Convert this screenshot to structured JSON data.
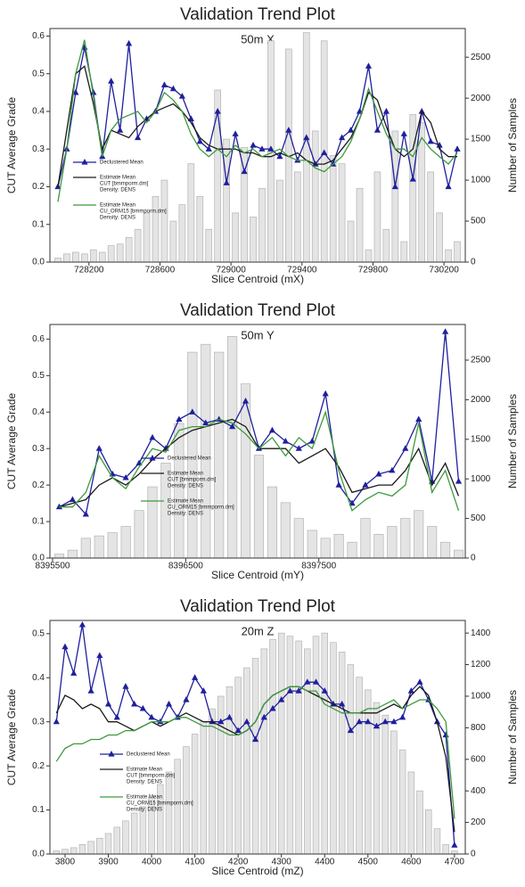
{
  "chart_data": [
    {
      "type": "combo",
      "title": "Validation Trend Plot",
      "subtitle": "50m X",
      "xlabel": "Slice Centroid (mX)",
      "ylabel": "CUT Average Grade",
      "y2label": "Number of Samples",
      "x": [
        728025,
        728075,
        728125,
        728175,
        728225,
        728275,
        728325,
        728375,
        728425,
        728475,
        728525,
        728575,
        728625,
        728675,
        728725,
        728775,
        728825,
        728875,
        728925,
        728975,
        729025,
        729075,
        729125,
        729175,
        729225,
        729275,
        729325,
        729375,
        729425,
        729475,
        729525,
        729575,
        729625,
        729675,
        729725,
        729775,
        729825,
        729875,
        729925,
        729975,
        730025,
        730075,
        730125,
        730175,
        730225,
        730275
      ],
      "xlim": [
        727980,
        730320
      ],
      "xticks": [
        728200,
        728600,
        729000,
        729400,
        729800,
        730200
      ],
      "ylim": [
        0,
        0.62
      ],
      "yticks": [
        {
          "value": 0,
          "label": "0.0"
        },
        0.1,
        0.2,
        0.3,
        0.4,
        0.5,
        0.6
      ],
      "y2lim": [
        0,
        2850
      ],
      "y2ticks": [
        0,
        500,
        1000,
        1500,
        2000,
        2500
      ],
      "series": [
        {
          "name": "Declustered Mean",
          "color": "#1f1f9e",
          "marker": "triangle",
          "values": [
            0.2,
            0.3,
            0.45,
            0.57,
            0.45,
            0.28,
            0.48,
            0.35,
            0.58,
            0.33,
            0.38,
            0.4,
            0.47,
            0.46,
            0.44,
            0.38,
            0.32,
            0.3,
            0.4,
            0.21,
            0.34,
            0.24,
            0.31,
            0.3,
            0.3,
            0.28,
            0.35,
            0.27,
            0.33,
            0.26,
            0.29,
            0.26,
            0.33,
            0.35,
            0.4,
            0.52,
            0.35,
            0.4,
            0.2,
            0.34,
            0.22,
            0.4,
            0.32,
            0.31,
            0.2,
            0.3
          ]
        },
        {
          "name": "Estimate Mean",
          "legend_lines": [
            "CUT [bmmporm.dm]",
            "Density: DENS"
          ],
          "color": "#1a1a1a",
          "values": [
            0.2,
            0.35,
            0.5,
            0.52,
            0.42,
            0.3,
            0.35,
            0.34,
            0.33,
            0.36,
            0.38,
            0.4,
            0.41,
            0.42,
            0.4,
            0.37,
            0.33,
            0.31,
            0.3,
            0.3,
            0.3,
            0.29,
            0.29,
            0.28,
            0.28,
            0.29,
            0.28,
            0.29,
            0.27,
            0.26,
            0.26,
            0.27,
            0.3,
            0.33,
            0.38,
            0.45,
            0.43,
            0.36,
            0.3,
            0.28,
            0.3,
            0.4,
            0.37,
            0.3,
            0.28,
            0.28
          ]
        },
        {
          "name": "Estimate Mean",
          "legend_lines": [
            "CU_ORM15 [bmmporm.dm]",
            "Density: DENS"
          ],
          "color": "#3c9a3c",
          "values": [
            0.16,
            0.3,
            0.5,
            0.59,
            0.44,
            0.28,
            0.35,
            0.38,
            0.39,
            0.4,
            0.37,
            0.4,
            0.45,
            0.43,
            0.4,
            0.34,
            0.3,
            0.28,
            0.3,
            0.28,
            0.31,
            0.29,
            0.3,
            0.28,
            0.29,
            0.3,
            0.28,
            0.27,
            0.27,
            0.25,
            0.24,
            0.26,
            0.28,
            0.32,
            0.38,
            0.46,
            0.4,
            0.34,
            0.3,
            0.3,
            0.28,
            0.33,
            0.3,
            0.28,
            0.26,
            0.29
          ]
        },
        {
          "style": "bar",
          "axis": "y2",
          "color": "#e4e4e4",
          "values": [
            50,
            100,
            120,
            100,
            150,
            120,
            200,
            220,
            300,
            400,
            600,
            800,
            1000,
            500,
            700,
            1200,
            800,
            400,
            2100,
            1500,
            600,
            1400,
            550,
            900,
            2700,
            1000,
            2600,
            1100,
            2800,
            1600,
            2700,
            1300,
            1200,
            500,
            900,
            150,
            1100,
            400,
            1600,
            250,
            1800,
            1700,
            1100,
            600,
            150,
            250
          ]
        }
      ]
    },
    {
      "type": "combo",
      "title": "Validation Trend Plot",
      "subtitle": "50m Y",
      "xlabel": "Slice Centroid (mY)",
      "ylabel": "CUT Average Grade",
      "y2label": "Number of Samples",
      "x": [
        8395550,
        8395650,
        8395750,
        8395850,
        8395950,
        8396050,
        8396150,
        8396250,
        8396350,
        8396450,
        8396550,
        8396650,
        8396750,
        8396850,
        8396950,
        8397050,
        8397150,
        8397250,
        8397350,
        8397450,
        8397550,
        8397650,
        8397750,
        8397850,
        8397950,
        8398050,
        8398150,
        8398250,
        8398350,
        8398450,
        8398550
      ],
      "xlim": [
        8395480,
        8398600
      ],
      "xticks": [
        8395500,
        8396500,
        8397500
      ],
      "ylim": [
        0,
        0.64
      ],
      "yticks": [
        {
          "value": 0,
          "label": "0.0"
        },
        0.1,
        0.2,
        0.3,
        0.4,
        0.5,
        0.6
      ],
      "y2lim": [
        0,
        2950
      ],
      "y2ticks": [
        0,
        500,
        1000,
        1500,
        2000,
        2500
      ],
      "series": [
        {
          "name": "Declustered Mean",
          "color": "#1f1f9e",
          "marker": "triangle",
          "values": [
            0.14,
            0.16,
            0.12,
            0.3,
            0.23,
            0.22,
            0.26,
            0.33,
            0.3,
            0.38,
            0.4,
            0.37,
            0.38,
            0.36,
            0.43,
            0.3,
            0.35,
            0.32,
            0.3,
            0.32,
            0.45,
            0.2,
            0.15,
            0.2,
            0.23,
            0.24,
            0.3,
            0.38,
            0.21,
            0.62,
            0.21
          ]
        },
        {
          "name": "Estimate Mean",
          "legend_lines": [
            "CUT [bmmporm.dm]",
            "Density: DENS"
          ],
          "color": "#1a1a1a",
          "values": [
            0.14,
            0.15,
            0.16,
            0.2,
            0.22,
            0.2,
            0.23,
            0.27,
            0.3,
            0.33,
            0.35,
            0.36,
            0.37,
            0.38,
            0.36,
            0.3,
            0.3,
            0.3,
            0.26,
            0.28,
            0.3,
            0.25,
            0.18,
            0.19,
            0.2,
            0.2,
            0.24,
            0.3,
            0.2,
            0.26,
            0.17
          ]
        },
        {
          "name": "Estimate Mean",
          "legend_lines": [
            "CU_ORM15 [bmmporm.dm]",
            "Density: DENS"
          ],
          "color": "#3c9a3c",
          "values": [
            0.14,
            0.14,
            0.18,
            0.28,
            0.22,
            0.19,
            0.25,
            0.3,
            0.29,
            0.35,
            0.36,
            0.36,
            0.38,
            0.37,
            0.34,
            0.3,
            0.33,
            0.28,
            0.33,
            0.3,
            0.4,
            0.24,
            0.13,
            0.16,
            0.18,
            0.17,
            0.2,
            0.37,
            0.18,
            0.24,
            0.13
          ]
        },
        {
          "style": "bar",
          "axis": "y2",
          "color": "#e4e4e4",
          "values": [
            50,
            100,
            250,
            280,
            320,
            400,
            600,
            900,
            1200,
            1700,
            2600,
            2700,
            2600,
            2800,
            2200,
            1300,
            900,
            700,
            500,
            350,
            250,
            300,
            200,
            500,
            300,
            400,
            500,
            600,
            400,
            200,
            100
          ]
        }
      ]
    },
    {
      "type": "combo",
      "title": "Validation Trend Plot",
      "subtitle": "20m Z",
      "xlabel": "Slice Centroid (mZ)",
      "ylabel": "CUT Average Grade",
      "y2label": "Number of Samples",
      "x": [
        3780,
        3800,
        3820,
        3840,
        3860,
        3880,
        3900,
        3920,
        3940,
        3960,
        3980,
        4000,
        4020,
        4040,
        4060,
        4080,
        4100,
        4120,
        4140,
        4160,
        4180,
        4200,
        4220,
        4240,
        4260,
        4280,
        4300,
        4320,
        4340,
        4360,
        4380,
        4400,
        4420,
        4440,
        4460,
        4480,
        4500,
        4520,
        4540,
        4560,
        4580,
        4600,
        4620,
        4640,
        4660,
        4680,
        4700
      ],
      "xlim": [
        3765,
        4725
      ],
      "xticks": [
        3800,
        3900,
        4000,
        4100,
        4200,
        4300,
        4400,
        4500,
        4600,
        4700
      ],
      "ylim": [
        0,
        0.53
      ],
      "yticks": [
        {
          "value": 0,
          "label": "0.0"
        },
        0.1,
        0.2,
        0.3,
        0.4,
        0.5
      ],
      "y2lim": [
        0,
        1480
      ],
      "y2ticks": [
        0,
        200,
        400,
        600,
        800,
        1000,
        1200,
        1400
      ],
      "series": [
        {
          "name": "Declustered Mean",
          "color": "#1f1f9e",
          "marker": "triangle",
          "values": [
            0.3,
            0.47,
            0.41,
            0.52,
            0.37,
            0.45,
            0.34,
            0.31,
            0.38,
            0.34,
            0.33,
            0.31,
            0.3,
            0.34,
            0.31,
            0.35,
            0.4,
            0.37,
            0.3,
            0.3,
            0.31,
            0.28,
            0.3,
            0.26,
            0.31,
            0.33,
            0.35,
            0.37,
            0.37,
            0.39,
            0.39,
            0.37,
            0.34,
            0.34,
            0.28,
            0.3,
            0.3,
            0.29,
            0.3,
            0.3,
            0.31,
            0.37,
            0.39,
            0.35,
            0.3,
            0.27,
            0.02
          ]
        },
        {
          "name": "Estimate Mean",
          "legend_lines": [
            "CUT [bmmporm.dm]",
            "Density: DENS"
          ],
          "color": "#1a1a1a",
          "values": [
            0.32,
            0.36,
            0.35,
            0.33,
            0.34,
            0.33,
            0.3,
            0.3,
            0.29,
            0.28,
            0.29,
            0.3,
            0.29,
            0.3,
            0.31,
            0.32,
            0.31,
            0.3,
            0.3,
            0.29,
            0.28,
            0.27,
            0.28,
            0.3,
            0.34,
            0.36,
            0.37,
            0.38,
            0.38,
            0.37,
            0.36,
            0.35,
            0.34,
            0.33,
            0.32,
            0.32,
            0.32,
            0.32,
            0.33,
            0.34,
            0.33,
            0.36,
            0.38,
            0.36,
            0.3,
            0.22,
            0.05
          ]
        },
        {
          "name": "Estimate Mean",
          "legend_lines": [
            "CU_ORM15 [bmmporm.dm]",
            "Density: DENS"
          ],
          "color": "#3c9a3c",
          "values": [
            0.21,
            0.24,
            0.25,
            0.25,
            0.26,
            0.26,
            0.27,
            0.27,
            0.28,
            0.28,
            0.29,
            0.3,
            0.3,
            0.3,
            0.31,
            0.31,
            0.3,
            0.29,
            0.29,
            0.28,
            0.27,
            0.27,
            0.28,
            0.3,
            0.34,
            0.36,
            0.37,
            0.38,
            0.38,
            0.37,
            0.37,
            0.34,
            0.33,
            0.32,
            0.32,
            0.32,
            0.33,
            0.33,
            0.34,
            0.35,
            0.33,
            0.34,
            0.35,
            0.35,
            0.33,
            0.3,
            0.08
          ]
        },
        {
          "style": "bar",
          "axis": "y2",
          "color": "#e4e4e4",
          "values": [
            20,
            30,
            40,
            60,
            80,
            100,
            130,
            170,
            210,
            260,
            300,
            360,
            440,
            520,
            600,
            680,
            760,
            840,
            920,
            1000,
            1060,
            1120,
            1180,
            1240,
            1300,
            1360,
            1400,
            1380,
            1350,
            1300,
            1380,
            1400,
            1340,
            1280,
            1200,
            1120,
            1040,
            960,
            880,
            780,
            660,
            520,
            400,
            280,
            160,
            60,
            20
          ]
        }
      ]
    }
  ]
}
